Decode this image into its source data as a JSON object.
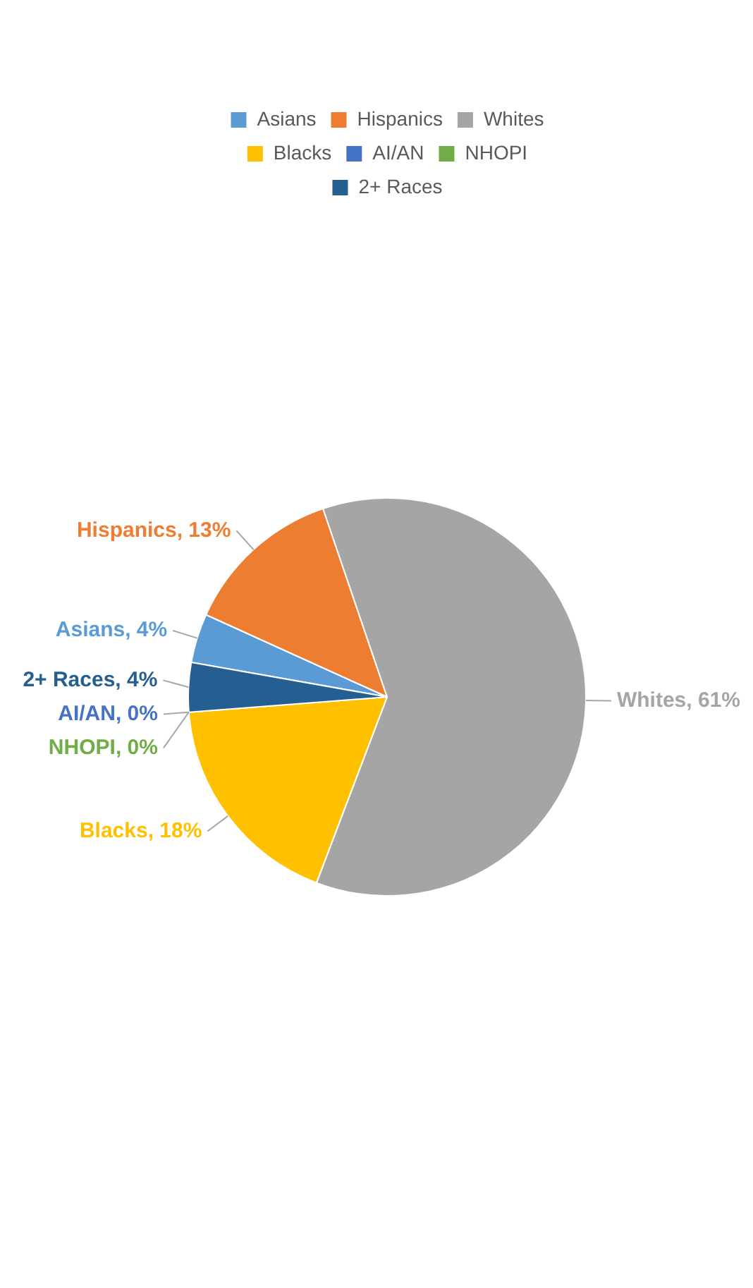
{
  "chart_data": {
    "type": "pie",
    "categories": [
      "Asians",
      "Hispanics",
      "Whites",
      "Blacks",
      "AI/AN",
      "NHOPI",
      "2+ Races"
    ],
    "values": [
      4,
      13,
      61,
      18,
      0,
      0,
      4
    ],
    "value_labels": [
      "Asians, 4%",
      "Hispanics, 13%",
      "Whites, 61%",
      "Blacks, 18%",
      "AI/AN, 0%",
      "NHOPI, 0%",
      "2+ Races, 4%"
    ],
    "colors": [
      "#5b9bd5",
      "#ed7d31",
      "#a5a5a5",
      "#ffc000",
      "#4472c4",
      "#70ad47",
      "#255e91"
    ],
    "legend": "top"
  }
}
